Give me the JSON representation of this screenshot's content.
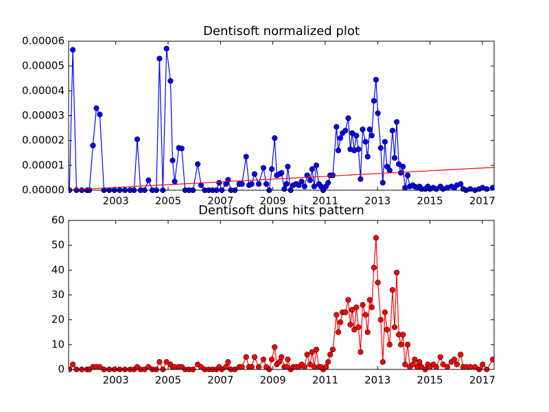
{
  "chart_data": [
    {
      "type": "line",
      "title": "Dentisoft normalized plot",
      "x": [
        2001.23,
        2001.36,
        2001.5,
        2001.7,
        2001.9,
        2001.99,
        2002.13,
        2002.26,
        2002.39,
        2002.55,
        2002.75,
        2002.95,
        2003.15,
        2003.35,
        2003.55,
        2003.7,
        2003.82,
        2003.95,
        2004.1,
        2004.25,
        2004.4,
        2004.55,
        2004.67,
        2004.8,
        2004.94,
        2005.09,
        2005.17,
        2005.25,
        2005.41,
        2005.52,
        2005.65,
        2005.8,
        2005.95,
        2006.13,
        2006.26,
        2006.4,
        2006.55,
        2006.7,
        2006.85,
        2006.95,
        2007.05,
        2007.21,
        2007.29,
        2007.4,
        2007.55,
        2007.72,
        2007.82,
        2007.98,
        2008.09,
        2008.19,
        2008.3,
        2008.46,
        2008.64,
        2008.75,
        2008.86,
        2008.96,
        2009.07,
        2009.15,
        2009.25,
        2009.33,
        2009.44,
        2009.52,
        2009.57,
        2009.68,
        2009.78,
        2009.89,
        2009.99,
        2010.1,
        2010.21,
        2010.31,
        2010.42,
        2010.5,
        2010.58,
        2010.66,
        2010.76,
        2010.84,
        2010.92,
        2011.03,
        2011.11,
        2011.19,
        2011.29,
        2011.43,
        2011.5,
        2011.58,
        2011.66,
        2011.77,
        2011.88,
        2011.96,
        2012.03,
        2012.11,
        2012.19,
        2012.27,
        2012.35,
        2012.43,
        2012.54,
        2012.62,
        2012.7,
        2012.78,
        2012.86,
        2012.94,
        2013.01,
        2013.12,
        2013.2,
        2013.28,
        2013.36,
        2013.46,
        2013.57,
        2013.65,
        2013.73,
        2013.81,
        2013.89,
        2013.97,
        2014.05,
        2014.15,
        2014.23,
        2014.34,
        2014.42,
        2014.52,
        2014.6,
        2014.68,
        2014.82,
        2014.92,
        2015.0,
        2015.13,
        2015.24,
        2015.4,
        2015.5,
        2015.66,
        2015.82,
        2015.93,
        2016.03,
        2016.17,
        2016.27,
        2016.38,
        2016.54,
        2016.72,
        2016.88,
        2017.01,
        2017.17,
        2017.4
      ],
      "series": [
        {
          "color": "#0000ff",
          "marker": "o",
          "values": [
            0,
            5.65e-05,
            0,
            0,
            0,
            0,
            1.8e-05,
            3.3e-05,
            3.05e-05,
            0,
            0,
            0,
            0,
            0,
            0,
            0,
            2.05e-05,
            0,
            0,
            4e-06,
            0,
            0,
            5.3e-05,
            0,
            5.7e-05,
            4.4e-05,
            1.2e-05,
            3.5e-06,
            1.7e-05,
            1.68e-05,
            0,
            0,
            0,
            1.05e-05,
            2e-06,
            0,
            0,
            0,
            0,
            3e-06,
            0,
            2.5e-06,
            4.2e-06,
            0,
            0,
            2.5e-06,
            2.5e-06,
            1.35e-05,
            2e-06,
            2.5e-06,
            6.5e-06,
            2.5e-06,
            9e-06,
            2.5e-06,
            0,
            8.5e-06,
            2.1e-05,
            6e-06,
            6.5e-06,
            7e-06,
            5e-07,
            2.5e-06,
            9.5e-06,
            0,
            2e-06,
            2.5e-06,
            2e-06,
            3.5e-06,
            1.5e-06,
            6e-06,
            4e-06,
            8.5e-06,
            1.5e-06,
            1e-05,
            2.5e-06,
            1.5e-06,
            0,
            1.5e-06,
            3e-06,
            6e-06,
            6e-06,
            2.55e-05,
            1.6e-05,
            2.1e-05,
            2.3e-05,
            2.4e-05,
            2.9e-05,
            1.65e-05,
            2.3e-05,
            1.6e-05,
            2.2e-05,
            1.65e-05,
            4.5e-06,
            2.45e-05,
            1.95e-05,
            1.35e-05,
            2.45e-05,
            2.2e-05,
            3.6e-05,
            4.45e-05,
            3.1e-05,
            1.7e-05,
            3e-06,
            1.95e-05,
            9.5e-06,
            8e-06,
            2.4e-05,
            1.3e-05,
            2.75e-05,
            1.05e-05,
            7e-06,
            9.5e-06,
            1e-06,
            6e-06,
            1.5e-06,
            2e-06,
            1.5e-06,
            1e-06,
            1.5e-06,
            5e-07,
            5e-07,
            1.5e-06,
            5e-07,
            1e-06,
            5e-07,
            1.5e-06,
            5e-07,
            1e-06,
            1.5e-06,
            1e-06,
            2e-06,
            2.5e-06,
            5e-07,
            0,
            5e-07,
            0,
            5e-07,
            1e-06,
            5e-07,
            1e-06
          ]
        },
        {
          "color": "#ff0000",
          "x": [
            2001.2,
            2017.45
          ],
          "values": [
            1e-07,
            9.2e-06
          ]
        }
      ],
      "xlim": [
        2001.2,
        2017.45
      ],
      "xticks": [
        2003,
        2005,
        2007,
        2009,
        2011,
        2013,
        2015,
        2017
      ],
      "ylim": [
        0,
        6e-05
      ],
      "yticks": [
        {
          "value": 0,
          "label": "0.00000"
        },
        {
          "value": 1e-05,
          "label": "0.00001"
        },
        {
          "value": 2e-05,
          "label": "0.00002"
        },
        {
          "value": 3e-05,
          "label": "0.00003"
        },
        {
          "value": 4e-05,
          "label": "0.00004"
        },
        {
          "value": 5e-05,
          "label": "0.00005"
        },
        {
          "value": 6e-05,
          "label": "0.00006"
        }
      ]
    },
    {
      "type": "line",
      "title": "Dentisoft duns hits pattern",
      "x": [
        2001.23,
        2001.36,
        2001.5,
        2001.7,
        2001.9,
        2001.99,
        2002.13,
        2002.26,
        2002.39,
        2002.55,
        2002.75,
        2002.95,
        2003.15,
        2003.35,
        2003.55,
        2003.7,
        2003.82,
        2003.95,
        2004.1,
        2004.25,
        2004.4,
        2004.55,
        2004.67,
        2004.8,
        2004.94,
        2005.09,
        2005.17,
        2005.25,
        2005.41,
        2005.52,
        2005.65,
        2005.8,
        2005.95,
        2006.13,
        2006.26,
        2006.4,
        2006.55,
        2006.7,
        2006.85,
        2006.95,
        2007.05,
        2007.21,
        2007.29,
        2007.4,
        2007.55,
        2007.72,
        2007.82,
        2007.98,
        2008.09,
        2008.19,
        2008.3,
        2008.46,
        2008.64,
        2008.75,
        2008.86,
        2008.96,
        2009.07,
        2009.15,
        2009.25,
        2009.33,
        2009.44,
        2009.52,
        2009.57,
        2009.68,
        2009.78,
        2009.89,
        2009.99,
        2010.1,
        2010.21,
        2010.31,
        2010.42,
        2010.5,
        2010.58,
        2010.66,
        2010.76,
        2010.84,
        2010.92,
        2011.03,
        2011.11,
        2011.19,
        2011.29,
        2011.43,
        2011.5,
        2011.58,
        2011.66,
        2011.77,
        2011.88,
        2011.96,
        2012.03,
        2012.11,
        2012.19,
        2012.27,
        2012.35,
        2012.43,
        2012.54,
        2012.62,
        2012.7,
        2012.78,
        2012.86,
        2012.94,
        2013.01,
        2013.12,
        2013.2,
        2013.28,
        2013.36,
        2013.46,
        2013.57,
        2013.65,
        2013.73,
        2013.81,
        2013.89,
        2013.97,
        2014.05,
        2014.15,
        2014.23,
        2014.34,
        2014.42,
        2014.52,
        2014.6,
        2014.68,
        2014.82,
        2014.92,
        2015.0,
        2015.13,
        2015.24,
        2015.4,
        2015.5,
        2015.66,
        2015.82,
        2015.93,
        2016.03,
        2016.17,
        2016.27,
        2016.38,
        2016.54,
        2016.72,
        2016.88,
        2017.01,
        2017.17,
        2017.4
      ],
      "series": [
        {
          "color": "#ff0000",
          "marker": "o",
          "values": [
            0,
            2,
            0,
            0,
            0,
            0,
            1,
            1,
            1,
            0,
            0,
            0,
            0,
            0,
            0,
            0,
            1,
            0,
            0,
            1,
            0,
            0,
            3,
            0,
            3,
            2,
            1,
            1,
            1,
            1,
            0,
            0,
            0,
            2,
            1,
            0,
            0,
            0,
            0,
            1,
            0,
            1,
            3,
            0,
            0,
            1,
            1,
            5,
            1,
            1,
            5,
            1,
            4,
            1,
            0,
            4,
            9,
            2,
            3,
            5,
            1,
            1,
            4,
            0,
            1,
            1,
            1,
            2,
            1,
            6,
            2,
            7,
            1,
            8,
            1,
            1,
            0,
            1,
            3,
            6,
            8,
            22,
            15,
            19,
            23,
            23,
            28,
            18,
            24,
            16,
            25,
            17,
            7,
            26,
            22,
            15,
            28,
            25,
            41,
            53,
            35,
            20,
            3,
            23,
            16,
            10,
            32,
            17,
            39,
            14,
            10,
            14,
            2,
            10,
            1,
            2,
            4,
            1,
            3,
            1,
            0,
            2,
            1,
            2,
            1,
            5,
            2,
            1,
            3,
            4,
            2,
            6,
            1,
            1,
            1,
            1,
            0,
            2,
            0,
            4
          ]
        }
      ],
      "xlim": [
        2001.2,
        2017.45
      ],
      "xticks": [
        2003,
        2005,
        2007,
        2009,
        2011,
        2013,
        2015,
        2017
      ],
      "ylim": [
        0,
        60
      ],
      "yticks": [
        0,
        10,
        20,
        30,
        40,
        50,
        60
      ]
    }
  ]
}
